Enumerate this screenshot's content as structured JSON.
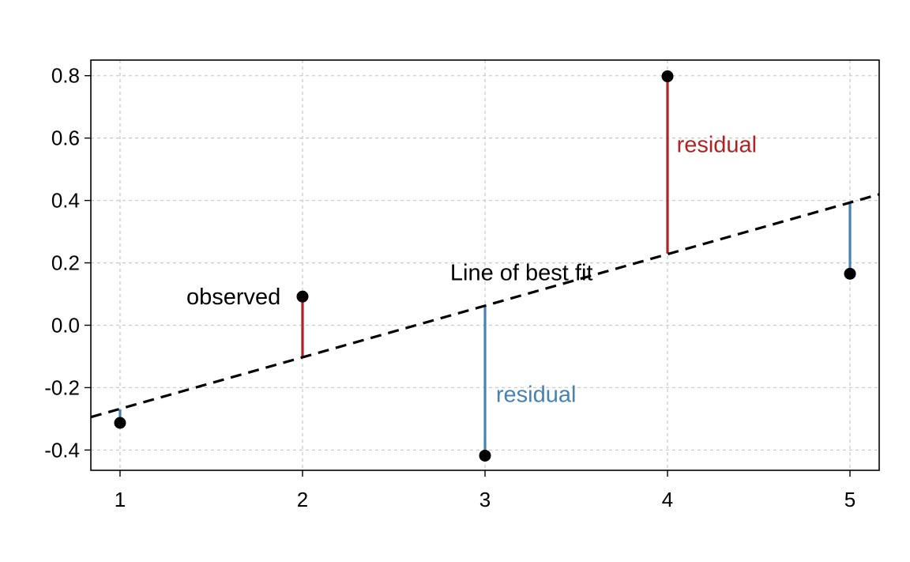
{
  "chart_data": {
    "type": "scatter",
    "title": "",
    "xlabel": "",
    "ylabel": "",
    "xlim": [
      0.84,
      5.16
    ],
    "ylim": [
      -0.465,
      0.85
    ],
    "x_ticks": [
      "1",
      "2",
      "3",
      "4",
      "5"
    ],
    "y_ticks": [
      "-0.4",
      "-0.2",
      "0.0",
      "0.2",
      "0.4",
      "0.6",
      "0.8"
    ],
    "grid": true,
    "points": [
      {
        "x": 1,
        "y": -0.313,
        "fit": -0.27
      },
      {
        "x": 2,
        "y": 0.092,
        "fit": -0.1
      },
      {
        "x": 3,
        "y": -0.418,
        "fit": 0.065
      },
      {
        "x": 4,
        "y": 0.798,
        "fit": 0.23
      },
      {
        "x": 5,
        "y": 0.165,
        "fit": 0.395
      }
    ],
    "fit_line": {
      "slope": 0.1653,
      "intercept": -0.4333
    },
    "colors": {
      "positive_residual": "#b22222",
      "negative_residual": "#4682b4",
      "points": "#000000",
      "fit_line": "#000000",
      "grid": "#cccccc"
    },
    "annotations": [
      {
        "text": "observed",
        "x": 1.88,
        "y": 0.092,
        "anchor": "end",
        "color": "#000000"
      },
      {
        "text": "Line of best fit",
        "x": 3.2,
        "y": 0.17,
        "anchor": "middle",
        "color": "#000000"
      },
      {
        "text": "residual",
        "x": 4.05,
        "y": 0.58,
        "anchor": "start",
        "color": "#b22222"
      },
      {
        "text": "residual",
        "x": 3.06,
        "y": -0.22,
        "anchor": "start",
        "color": "#4682b4"
      }
    ]
  }
}
